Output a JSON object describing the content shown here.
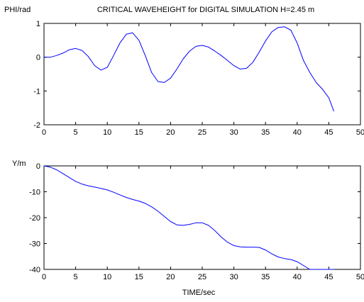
{
  "title": "CRITICAL  WAVEHEIGHT for DIGITAL SIMULATION H=2.45 m",
  "colors": {
    "line": "#0000ff",
    "axes": "#000000",
    "background": "#ffffff"
  },
  "chart_data": [
    {
      "type": "line",
      "title": "CRITICAL  WAVEHEIGHT for DIGITAL SIMULATION H=2.45 m",
      "ylabel": "PHI/rad",
      "xlabel": "",
      "xlim": [
        0,
        50
      ],
      "ylim": [
        -2,
        1
      ],
      "xticks": [
        "0",
        "5",
        "10",
        "15",
        "20",
        "25",
        "30",
        "35",
        "40",
        "45",
        "50"
      ],
      "yticks": [
        "1",
        "0",
        "-1",
        "-2"
      ],
      "grid": false,
      "series": [
        {
          "x": [
            0,
            1,
            2,
            3,
            4,
            5,
            6,
            7,
            8,
            9,
            10,
            11,
            12,
            13,
            14,
            15,
            16,
            17,
            18,
            19,
            20,
            21,
            22,
            23,
            24,
            25,
            26,
            27,
            28,
            29,
            30,
            31,
            32,
            33,
            34,
            35,
            36,
            37,
            38,
            39,
            40,
            41,
            42,
            43,
            44,
            45,
            45.8
          ],
          "y": [
            0,
            0,
            0.05,
            0.12,
            0.22,
            0.26,
            0.2,
            0.02,
            -0.25,
            -0.38,
            -0.3,
            0.05,
            0.42,
            0.68,
            0.72,
            0.5,
            0.05,
            -0.45,
            -0.72,
            -0.75,
            -0.62,
            -0.35,
            -0.05,
            0.18,
            0.32,
            0.35,
            0.3,
            0.18,
            0.05,
            -0.1,
            -0.25,
            -0.35,
            -0.33,
            -0.15,
            0.15,
            0.48,
            0.75,
            0.88,
            0.9,
            0.8,
            0.42,
            -0.1,
            -0.45,
            -0.75,
            -0.95,
            -1.2,
            -1.6
          ]
        }
      ]
    },
    {
      "type": "line",
      "title": "",
      "ylabel": "Y/m",
      "xlabel": "TIME/sec",
      "xlim": [
        0,
        50
      ],
      "ylim": [
        -40,
        0
      ],
      "xticks": [
        "0",
        "5",
        "10",
        "15",
        "20",
        "25",
        "30",
        "35",
        "40",
        "45",
        "50"
      ],
      "yticks": [
        "0",
        "-10",
        "-20",
        "-30",
        "-40"
      ],
      "grid": false,
      "series": [
        {
          "x": [
            0,
            1,
            2,
            3,
            4,
            5,
            6,
            7,
            8,
            9,
            10,
            11,
            12,
            13,
            14,
            15,
            16,
            17,
            18,
            19,
            20,
            21,
            22,
            23,
            24,
            25,
            26,
            27,
            28,
            29,
            30,
            31,
            32,
            33,
            34,
            35,
            36,
            37,
            38,
            39,
            40,
            41,
            42,
            43,
            44,
            45,
            45.8
          ],
          "y": [
            0,
            -0.5,
            -1.5,
            -3,
            -4.5,
            -6,
            -7,
            -7.7,
            -8.2,
            -8.7,
            -9.3,
            -10.2,
            -11.2,
            -12.2,
            -13,
            -13.6,
            -14.5,
            -15.8,
            -17.5,
            -19.5,
            -21.5,
            -22.8,
            -23,
            -22.6,
            -22,
            -22,
            -23,
            -25,
            -27.5,
            -29.5,
            -30.8,
            -31.3,
            -31.4,
            -31.4,
            -31.5,
            -32.5,
            -34,
            -35.2,
            -35.8,
            -36.2,
            -37,
            -38.5,
            -40,
            -40,
            -40,
            -40,
            -40
          ]
        }
      ]
    }
  ]
}
